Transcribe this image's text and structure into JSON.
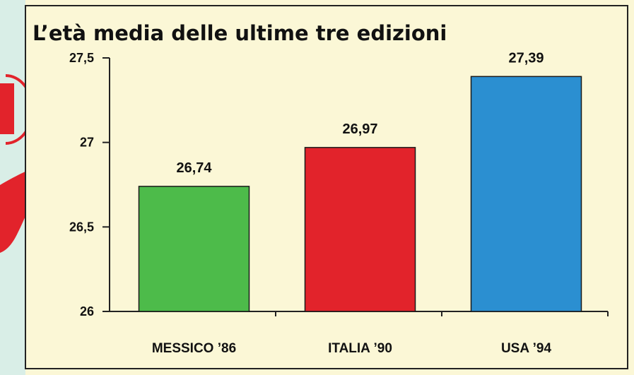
{
  "colors": {
    "background": "#fbf7d6",
    "left_strip": "#d9eee7",
    "frame": "#222222",
    "axis": "#222222",
    "decoration_red": "#e2232b"
  },
  "chart_data": {
    "type": "bar",
    "title": "L’età media delle ultime tre edizioni",
    "xlabel": "",
    "ylabel": "",
    "categories": [
      "MESSICO ’86",
      "ITALIA ’90",
      "USA ’94"
    ],
    "values": [
      26.74,
      26.97,
      27.39
    ],
    "value_labels": [
      "26,74",
      "26,97",
      "27,39"
    ],
    "bar_colors": [
      "#4dbb4a",
      "#e2232b",
      "#2b8fd1"
    ],
    "ylim": [
      26,
      27.5
    ],
    "yticks": [
      26,
      26.5,
      27,
      27.5
    ],
    "ytick_labels": [
      "26",
      "26,5",
      "27",
      "27,5"
    ],
    "grid": false,
    "legend": "none"
  }
}
